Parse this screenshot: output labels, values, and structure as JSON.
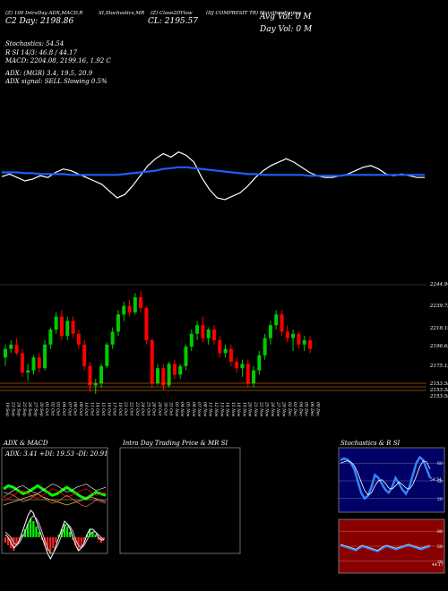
{
  "header": {
    "line1": [
      "(Z) 100 IntraDay ADX,MACD,R",
      "SI,Stochastics,MR",
      "(Z) Close2DYlow",
      "(DJ COMPRESIT TR) Marathindigipeg"
    ],
    "close_day": "C2 Day: 2198.86",
    "cl": "CL: 2195.57",
    "avg_vol": "Avg Vol: 0  M",
    "day_vol": "Day Vol: 0  M",
    "stochastics": "Stochastics: 54.54",
    "rsi": "R         SI 14/3: 46.8  / 44.17",
    "macd": "MACD: 2204.08,  2199.16,  1.92  C",
    "adx": "ADX:                         (MGR) 3.4,   19.5,   20.9",
    "adx_signal": "ADX  signal: SELL  Slowing 0.5%"
  },
  "colors": {
    "up": "#00cc00",
    "down": "#ff0000",
    "ma": "#1a5fff",
    "price": "#ffffff"
  },
  "price_axis": {
    "labels": [
      "2244.94",
      "2239.72",
      "2218.19",
      "2196.63",
      "2175.12",
      "2153.58",
      "2153.58",
      "2153.58"
    ],
    "label_top": "2244.94",
    "label_top2": "2239.72"
  },
  "x_axis": {
    "dates": [
      "19 Sep",
      "23 Sep",
      "24 Sep",
      "25 Sep",
      "26 Sep",
      "27 Sep",
      "30 Sep",
      "01 Oct",
      "02 Oct",
      "03 Oct",
      "04 Oct",
      "07 Oct",
      "08 Oct",
      "09 Oct",
      "10 Oct",
      "11 Oct",
      "14 Oct",
      "15 Oct",
      "16 Oct",
      "17 Oct",
      "18 Oct",
      "21 Oct",
      "22 Oct",
      "23 Oct",
      "24 Oct",
      "25 Oct",
      "28 Oct",
      "29 Oct",
      "30 Oct",
      "31 Oct",
      "01 Nov",
      "04 Nov",
      "05 Nov",
      "06 Nov",
      "07 Nov",
      "08 Nov",
      "11 Nov",
      "12 Nov",
      "13 Nov",
      "14 Nov",
      "15 Nov",
      "18 Nov",
      "19 Nov",
      "20 Nov",
      "21 Nov",
      "22 Nov",
      "25 Nov",
      "26 Nov",
      "27 Nov",
      "29 Nov",
      "02 Dec",
      "03 Dec",
      "04 Dec",
      "05 Dec",
      "06 Dec",
      "09 Dec"
    ]
  },
  "chart_data": {
    "type": "candlestick",
    "ylim": [
      2150,
      2250
    ],
    "candles": [
      {
        "o": 2184,
        "h": 2196,
        "l": 2176,
        "c": 2192,
        "up": true
      },
      {
        "o": 2192,
        "h": 2200,
        "l": 2188,
        "c": 2196,
        "up": true
      },
      {
        "o": 2196,
        "h": 2202,
        "l": 2186,
        "c": 2188,
        "up": false
      },
      {
        "o": 2188,
        "h": 2192,
        "l": 2166,
        "c": 2170,
        "up": false
      },
      {
        "o": 2170,
        "h": 2178,
        "l": 2162,
        "c": 2172,
        "up": true
      },
      {
        "o": 2172,
        "h": 2186,
        "l": 2168,
        "c": 2184,
        "up": true
      },
      {
        "o": 2184,
        "h": 2188,
        "l": 2170,
        "c": 2174,
        "up": false
      },
      {
        "o": 2174,
        "h": 2200,
        "l": 2172,
        "c": 2196,
        "up": true
      },
      {
        "o": 2196,
        "h": 2212,
        "l": 2192,
        "c": 2210,
        "up": true
      },
      {
        "o": 2210,
        "h": 2226,
        "l": 2206,
        "c": 2222,
        "up": true
      },
      {
        "o": 2222,
        "h": 2228,
        "l": 2200,
        "c": 2204,
        "up": false
      },
      {
        "o": 2204,
        "h": 2222,
        "l": 2200,
        "c": 2218,
        "up": true
      },
      {
        "o": 2218,
        "h": 2222,
        "l": 2202,
        "c": 2206,
        "up": false
      },
      {
        "o": 2206,
        "h": 2210,
        "l": 2192,
        "c": 2196,
        "up": false
      },
      {
        "o": 2196,
        "h": 2200,
        "l": 2172,
        "c": 2176,
        "up": false
      },
      {
        "o": 2176,
        "h": 2180,
        "l": 2152,
        "c": 2158,
        "up": false
      },
      {
        "o": 2158,
        "h": 2164,
        "l": 2150,
        "c": 2160,
        "up": true
      },
      {
        "o": 2160,
        "h": 2178,
        "l": 2156,
        "c": 2176,
        "up": true
      },
      {
        "o": 2176,
        "h": 2198,
        "l": 2174,
        "c": 2196,
        "up": true
      },
      {
        "o": 2196,
        "h": 2212,
        "l": 2192,
        "c": 2208,
        "up": true
      },
      {
        "o": 2208,
        "h": 2228,
        "l": 2204,
        "c": 2224,
        "up": true
      },
      {
        "o": 2224,
        "h": 2236,
        "l": 2218,
        "c": 2232,
        "up": true
      },
      {
        "o": 2232,
        "h": 2238,
        "l": 2222,
        "c": 2226,
        "up": false
      },
      {
        "o": 2226,
        "h": 2244,
        "l": 2224,
        "c": 2240,
        "up": true
      },
      {
        "o": 2240,
        "h": 2246,
        "l": 2226,
        "c": 2230,
        "up": false
      },
      {
        "o": 2230,
        "h": 2232,
        "l": 2196,
        "c": 2200,
        "up": false
      },
      {
        "o": 2200,
        "h": 2202,
        "l": 2156,
        "c": 2160,
        "up": false
      },
      {
        "o": 2160,
        "h": 2178,
        "l": 2158,
        "c": 2174,
        "up": true
      },
      {
        "o": 2174,
        "h": 2178,
        "l": 2154,
        "c": 2158,
        "up": false
      },
      {
        "o": 2158,
        "h": 2180,
        "l": 2156,
        "c": 2178,
        "up": true
      },
      {
        "o": 2178,
        "h": 2182,
        "l": 2164,
        "c": 2168,
        "up": false
      },
      {
        "o": 2168,
        "h": 2178,
        "l": 2164,
        "c": 2176,
        "up": true
      },
      {
        "o": 2176,
        "h": 2196,
        "l": 2172,
        "c": 2194,
        "up": true
      },
      {
        "o": 2194,
        "h": 2210,
        "l": 2190,
        "c": 2206,
        "up": true
      },
      {
        "o": 2206,
        "h": 2218,
        "l": 2200,
        "c": 2214,
        "up": true
      },
      {
        "o": 2214,
        "h": 2222,
        "l": 2198,
        "c": 2202,
        "up": false
      },
      {
        "o": 2202,
        "h": 2212,
        "l": 2196,
        "c": 2210,
        "up": true
      },
      {
        "o": 2210,
        "h": 2214,
        "l": 2196,
        "c": 2200,
        "up": false
      },
      {
        "o": 2200,
        "h": 2204,
        "l": 2184,
        "c": 2188,
        "up": false
      },
      {
        "o": 2188,
        "h": 2196,
        "l": 2184,
        "c": 2192,
        "up": true
      },
      {
        "o": 2192,
        "h": 2196,
        "l": 2176,
        "c": 2180,
        "up": false
      },
      {
        "o": 2180,
        "h": 2184,
        "l": 2170,
        "c": 2174,
        "up": false
      },
      {
        "o": 2174,
        "h": 2182,
        "l": 2166,
        "c": 2178,
        "up": true
      },
      {
        "o": 2178,
        "h": 2182,
        "l": 2156,
        "c": 2160,
        "up": false
      },
      {
        "o": 2160,
        "h": 2176,
        "l": 2156,
        "c": 2172,
        "up": true
      },
      {
        "o": 2172,
        "h": 2190,
        "l": 2168,
        "c": 2186,
        "up": true
      },
      {
        "o": 2186,
        "h": 2206,
        "l": 2182,
        "c": 2202,
        "up": true
      },
      {
        "o": 2202,
        "h": 2218,
        "l": 2196,
        "c": 2214,
        "up": true
      },
      {
        "o": 2214,
        "h": 2228,
        "l": 2210,
        "c": 2224,
        "up": true
      },
      {
        "o": 2224,
        "h": 2228,
        "l": 2204,
        "c": 2208,
        "up": false
      },
      {
        "o": 2208,
        "h": 2214,
        "l": 2198,
        "c": 2202,
        "up": false
      },
      {
        "o": 2202,
        "h": 2210,
        "l": 2190,
        "c": 2206,
        "up": true
      },
      {
        "o": 2206,
        "h": 2208,
        "l": 2192,
        "c": 2196,
        "up": false
      },
      {
        "o": 2196,
        "h": 2204,
        "l": 2190,
        "c": 2200,
        "up": true
      },
      {
        "o": 2200,
        "h": 2204,
        "l": 2188,
        "c": 2192,
        "up": false
      }
    ],
    "stoch_line": [
      45,
      48,
      44,
      40,
      42,
      46,
      44,
      50,
      54,
      52,
      48,
      44,
      40,
      36,
      28,
      20,
      24,
      34,
      46,
      58,
      66,
      72,
      68,
      74,
      70,
      62,
      44,
      30,
      20,
      18,
      22,
      26,
      34,
      44,
      52,
      58,
      62,
      66,
      62,
      56,
      50,
      46,
      44,
      44,
      46,
      48,
      52,
      56,
      58,
      54,
      48,
      46,
      48,
      46,
      44,
      44
    ],
    "ma_line": [
      50,
      50,
      50,
      49,
      49,
      48,
      48,
      48,
      48,
      47,
      47,
      47,
      47,
      47,
      47,
      47,
      48,
      49,
      50,
      51,
      52,
      54,
      55,
      56,
      56,
      55,
      54,
      53,
      52,
      51,
      50,
      49,
      48,
      48,
      47,
      47,
      47,
      47,
      47,
      47,
      46,
      46,
      46,
      46,
      46,
      47,
      47,
      47,
      47,
      47,
      47,
      47,
      47,
      47,
      47,
      47
    ],
    "adx_panel": {
      "label": "ADX: 3.41  +DI: 19.53  -DI: 20.91",
      "adx": [
        40,
        42,
        44,
        46,
        48,
        50,
        52,
        54,
        50,
        48,
        46,
        44,
        42,
        40,
        42,
        44,
        46,
        48,
        50,
        48,
        46,
        44
      ],
      "pdi": [
        60,
        64,
        62,
        58,
        54,
        56,
        60,
        64,
        60,
        56,
        52,
        54,
        58,
        62,
        58,
        54,
        50,
        48,
        52,
        56,
        54,
        52
      ],
      "mdi": [
        50,
        48,
        52,
        56,
        58,
        54,
        50,
        48,
        52,
        56,
        60,
        58,
        54,
        50,
        52,
        56,
        58,
        60,
        56,
        52,
        54,
        56
      ]
    },
    "macd_panel": {
      "hist": [
        -2,
        -3,
        -4,
        -5,
        -3,
        -1,
        1,
        3,
        5,
        7,
        6,
        4,
        2,
        -1,
        -3,
        -5,
        -6,
        -4,
        -2,
        1,
        3,
        5,
        4,
        2,
        -1,
        -3,
        -5,
        -4,
        -2,
        1,
        3,
        2,
        1,
        -1,
        -2,
        -1
      ],
      "macd": [
        1,
        0,
        -2,
        -4,
        -3,
        -1,
        2,
        5,
        8,
        10,
        9,
        6,
        3,
        0,
        -3,
        -6,
        -8,
        -6,
        -3,
        0,
        3,
        6,
        5,
        3,
        0,
        -3,
        -5,
        -4,
        -2,
        1,
        3,
        3,
        2,
        0,
        -1,
        -1
      ],
      "signal": [
        2,
        1,
        0,
        -2,
        -3,
        -2,
        0,
        2,
        5,
        7,
        8,
        7,
        5,
        2,
        -1,
        -4,
        -6,
        -6,
        -4,
        -2,
        1,
        4,
        5,
        4,
        2,
        -1,
        -3,
        -4,
        -3,
        -1,
        1,
        2,
        2,
        1,
        0,
        -1
      ]
    },
    "stoch_panel": {
      "k": [
        85,
        88,
        86,
        80,
        70,
        50,
        30,
        20,
        25,
        40,
        60,
        55,
        45,
        35,
        30,
        40,
        55,
        45,
        35,
        28,
        40,
        60,
        80,
        90,
        85,
        70,
        55
      ],
      "d": [
        80,
        82,
        84,
        82,
        76,
        64,
        48,
        34,
        26,
        30,
        42,
        50,
        52,
        46,
        38,
        36,
        42,
        48,
        44,
        38,
        36,
        44,
        58,
        74,
        84,
        82,
        70
      ],
      "levels": [
        "80",
        "50",
        "20"
      ],
      "value": "54.54"
    },
    "rsi_panel": {
      "rsi": [
        52,
        50,
        48,
        46,
        44,
        42,
        46,
        50,
        48,
        46,
        44,
        42,
        40,
        44,
        48,
        50,
        48,
        46,
        44,
        46,
        48,
        50,
        52,
        50,
        48,
        46,
        44,
        46,
        48,
        50
      ],
      "levels": [
        "80",
        "50",
        "20"
      ],
      "value": "44.17"
    }
  },
  "panels": {
    "adx_macd_title": "ADX  & MACD",
    "intraday_title": "Intra  Day Trading Price  & MR                              SI",
    "stoch_rsi_title": "Stochastics & R                     SI"
  }
}
